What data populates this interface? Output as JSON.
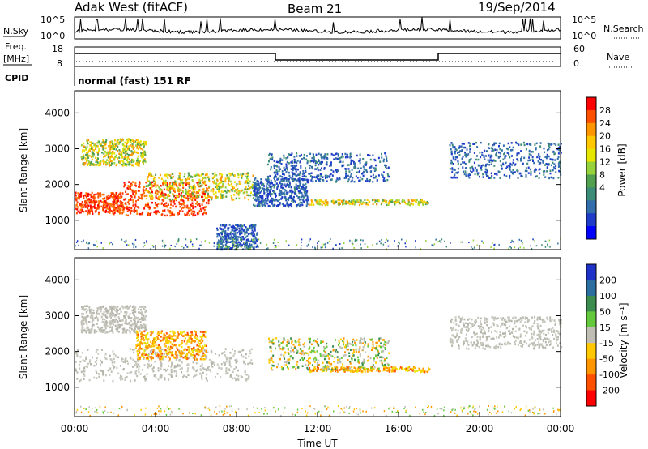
{
  "header": {
    "radar": "Adak West (fitACF)",
    "beam": "Beam 21",
    "date": "19/Sep/2014"
  },
  "panels": {
    "nsky": {
      "left_label": "N.Sky",
      "right_label": "N.Search",
      "ticks_left": [
        "10^5",
        "10^0"
      ],
      "ticks_right": [
        "10^5",
        "10^0"
      ]
    },
    "freq": {
      "left_label": "Freq.",
      "unit": "[MHz]",
      "ticks_left": [
        "18",
        "8"
      ],
      "right_label": "Nave",
      "ticks_right": [
        "60",
        "0"
      ]
    },
    "cpid": {
      "label": "CPID",
      "text": "normal (fast) 151 RF"
    }
  },
  "chart_data": [
    {
      "type": "heatmap",
      "name": "power",
      "ylabel": "Slant Range [km]",
      "yticks": [
        1000,
        2000,
        3000,
        4000
      ],
      "ylim": [
        180,
        4620
      ],
      "xlim": [
        0,
        24
      ],
      "colorbar": {
        "label": "Power [dB]",
        "ticks": [
          "28",
          "24",
          "20",
          "16",
          "12",
          "8",
          "4"
        ],
        "colors": [
          "#ff0000",
          "#ff5000",
          "#ff9600",
          "#ffc800",
          "#e6e600",
          "#96d23c",
          "#50a050",
          "#3c8c78",
          "#326eaa",
          "#1e3cc8",
          "#0000ff"
        ]
      },
      "regions": [
        {
          "t0": 0.0,
          "t1": 2.4,
          "r0": 1200,
          "r1": 1800,
          "level": "high"
        },
        {
          "t0": 2.4,
          "t1": 6.6,
          "r0": 1150,
          "r1": 2100,
          "level": "high"
        },
        {
          "t0": 0.3,
          "t1": 3.5,
          "r0": 2550,
          "r1": 3300,
          "level": "mid"
        },
        {
          "t0": 3.5,
          "t1": 8.8,
          "r0": 1600,
          "r1": 2350,
          "level": "mid"
        },
        {
          "t0": 8.8,
          "t1": 11.5,
          "r0": 1400,
          "r1": 2200,
          "level": "low"
        },
        {
          "t0": 11.5,
          "t1": 17.5,
          "r0": 1450,
          "r1": 1600,
          "level": "mid"
        },
        {
          "t0": 9.5,
          "t1": 15.5,
          "r0": 2100,
          "r1": 2900,
          "level": "low"
        },
        {
          "t0": 18.5,
          "t1": 24.0,
          "r0": 2200,
          "r1": 3200,
          "level": "low"
        },
        {
          "t0": 7.0,
          "t1": 9.0,
          "r0": 200,
          "r1": 900,
          "level": "low"
        }
      ]
    },
    {
      "type": "heatmap",
      "name": "velocity",
      "ylabel": "Slant Range [km]",
      "xlabel": "Time UT",
      "xticks": [
        "00:00",
        "04:00",
        "08:00",
        "12:00",
        "16:00",
        "20:00",
        "00:00"
      ],
      "yticks": [
        1000,
        2000,
        3000,
        4000
      ],
      "ylim": [
        180,
        4620
      ],
      "xlim": [
        0,
        24
      ],
      "colorbar": {
        "label": "Velocity [m s⁻¹]",
        "ticks": [
          "200",
          "100",
          "50",
          "15",
          "-15",
          "-50",
          "-100",
          "-200"
        ],
        "colors": [
          "#1e32c8",
          "#2d6ea0",
          "#3c8c50",
          "#64c83c",
          "#bebeb4",
          "#ffc800",
          "#ff9600",
          "#ff5000",
          "#ff0000"
        ]
      },
      "regions": [
        {
          "t0": 0.0,
          "t1": 8.8,
          "r0": 1200,
          "r1": 2100,
          "level": "ground"
        },
        {
          "t0": 0.3,
          "t1": 3.5,
          "r0": 2550,
          "r1": 3300,
          "level": "ground"
        },
        {
          "t0": 18.5,
          "t1": 24.0,
          "r0": 2100,
          "r1": 3000,
          "level": "ground"
        },
        {
          "t0": 11.5,
          "t1": 17.5,
          "r0": 1450,
          "r1": 1600,
          "level": "neg"
        },
        {
          "t0": 9.5,
          "t1": 15.5,
          "r0": 1500,
          "r1": 2400,
          "level": "mixed"
        },
        {
          "t0": 3.0,
          "t1": 6.5,
          "r0": 1800,
          "r1": 2600,
          "level": "neg"
        }
      ]
    }
  ]
}
